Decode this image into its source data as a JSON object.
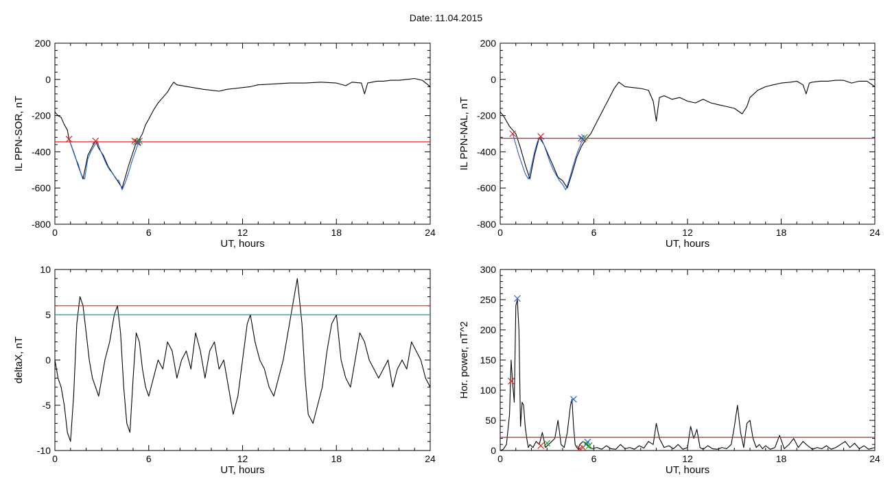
{
  "header": {
    "title": "Date:  11.04.2015"
  },
  "chart_data": [
    {
      "type": "line",
      "xlabel": "UT, hours",
      "ylabel": "IL PPN-SOR, nT",
      "xlim": [
        0,
        24
      ],
      "ylim": [
        -800,
        200
      ],
      "xticks": [
        0,
        6,
        12,
        18,
        24
      ],
      "yticks": [
        -800,
        -600,
        -400,
        -200,
        0,
        200
      ],
      "threshold": [
        {
          "value": -345,
          "color": "#e0201f"
        }
      ],
      "series": [
        {
          "color": "#000000",
          "x": [
            0,
            0.2,
            0.4,
            0.6,
            0.8,
            0.9,
            1.2,
            1.5,
            1.8,
            2.1,
            2.4,
            2.6,
            2.8,
            3.1,
            3.4,
            3.7,
            4,
            4.3,
            4.5,
            4.7,
            5,
            5.2,
            5.4,
            5.6,
            5.8,
            6,
            6.3,
            6.6,
            6.9,
            7.2,
            7.4,
            7.6,
            7.8,
            8.5,
            9.5,
            10.5,
            11,
            11.5,
            12,
            12.5,
            13,
            14,
            15,
            16,
            17,
            18,
            18.6,
            19,
            19.6,
            19.8,
            20,
            20.6,
            21,
            21.5,
            22,
            22.5,
            23,
            23.5,
            24
          ],
          "y": [
            -180,
            -200,
            -210,
            -250,
            -280,
            -330,
            -400,
            -480,
            -550,
            -420,
            -370,
            -340,
            -380,
            -420,
            -480,
            -520,
            -560,
            -600,
            -540,
            -480,
            -400,
            -350,
            -330,
            -300,
            -250,
            -220,
            -170,
            -130,
            -100,
            -70,
            -40,
            -15,
            -30,
            -40,
            -55,
            -65,
            -55,
            -50,
            -45,
            -40,
            -30,
            -25,
            -20,
            -20,
            -15,
            -20,
            -35,
            -15,
            -20,
            -80,
            -20,
            -10,
            -10,
            -5,
            -5,
            0,
            5,
            -5,
            -40
          ]
        },
        {
          "color": "#1f5fd6",
          "x": [
            0.9,
            1.1,
            1.3,
            1.5,
            1.7,
            1.9,
            2.1,
            2.3,
            2.5,
            2.7,
            2.9,
            3.1,
            3.3,
            3.5,
            3.7,
            3.9,
            4.1,
            4.3,
            4.5,
            4.7,
            4.9,
            5.1,
            5.3,
            5.5
          ],
          "y": [
            -330,
            -380,
            -430,
            -470,
            -530,
            -550,
            -440,
            -400,
            -370,
            -340,
            -390,
            -430,
            -470,
            -500,
            -520,
            -550,
            -560,
            -610,
            -570,
            -520,
            -460,
            -410,
            -360,
            -340
          ]
        }
      ],
      "markers": [
        {
          "x": 0.9,
          "y": -330,
          "color": "#e0201f"
        },
        {
          "x": 2.6,
          "y": -340,
          "color": "#e0201f"
        },
        {
          "x": 5.1,
          "y": -340,
          "color": "#e0201f"
        },
        {
          "x": 5.3,
          "y": -345,
          "color": "#e0201f"
        },
        {
          "x": 5.2,
          "y": -345,
          "color": "#2ca02c"
        },
        {
          "x": 5.4,
          "y": -340,
          "color": "#2ca02c"
        },
        {
          "x": 5.3,
          "y": -350,
          "color": "#1f5fd6"
        }
      ]
    },
    {
      "type": "line",
      "xlabel": "UT, hours",
      "ylabel": "IL PPN-NAL, nT",
      "xlim": [
        0,
        24
      ],
      "ylim": [
        -800,
        200
      ],
      "xticks": [
        0,
        6,
        12,
        18,
        24
      ],
      "yticks": [
        -800,
        -600,
        -400,
        -200,
        0,
        200
      ],
      "threshold": [
        {
          "value": -325,
          "color": "#e0201f"
        }
      ],
      "series": [
        {
          "color": "#000000",
          "x": [
            0,
            0.2,
            0.4,
            0.6,
            0.8,
            1,
            1.3,
            1.6,
            1.9,
            2.2,
            2.5,
            2.8,
            3.1,
            3.4,
            3.7,
            4,
            4.3,
            4.6,
            4.9,
            5.2,
            5.5,
            5.8,
            6.1,
            6.4,
            6.7,
            7,
            7.3,
            7.6,
            8,
            8.5,
            9,
            9.5,
            9.8,
            10,
            10.2,
            10.5,
            11,
            11.5,
            12,
            12.5,
            13,
            13.5,
            14,
            14.5,
            15,
            15.5,
            15.8,
            16,
            16.5,
            17,
            17.5,
            18,
            18.6,
            19,
            19.4,
            19.6,
            19.8,
            20,
            20.5,
            21,
            21.5,
            22,
            22.5,
            23,
            23.5,
            24
          ],
          "y": [
            -180,
            -200,
            -230,
            -260,
            -280,
            -300,
            -380,
            -470,
            -550,
            -420,
            -320,
            -360,
            -420,
            -480,
            -540,
            -560,
            -600,
            -520,
            -430,
            -370,
            -330,
            -300,
            -250,
            -200,
            -150,
            -100,
            -50,
            -15,
            -40,
            -45,
            -50,
            -60,
            -120,
            -230,
            -100,
            -90,
            -110,
            -100,
            -120,
            -130,
            -110,
            -130,
            -140,
            -150,
            -160,
            -190,
            -150,
            -100,
            -60,
            -40,
            -30,
            -20,
            -15,
            -10,
            -30,
            -80,
            -20,
            -15,
            -10,
            -10,
            -5,
            -5,
            -20,
            -10,
            -10,
            -40
          ]
        },
        {
          "color": "#1f5fd6",
          "x": [
            0.8,
            1,
            1.2,
            1.4,
            1.6,
            1.8,
            2,
            2.2,
            2.4,
            2.6,
            2.8,
            3,
            3.2,
            3.4,
            3.6,
            3.8,
            4,
            4.2,
            4.4,
            4.6,
            4.8,
            5,
            5.2,
            5.4
          ],
          "y": [
            -300,
            -360,
            -420,
            -470,
            -520,
            -550,
            -480,
            -400,
            -340,
            -320,
            -360,
            -410,
            -460,
            -500,
            -530,
            -560,
            -580,
            -610,
            -560,
            -500,
            -440,
            -390,
            -350,
            -330
          ]
        }
      ],
      "markers": [
        {
          "x": 0.8,
          "y": -300,
          "color": "#e0201f"
        },
        {
          "x": 2.6,
          "y": -315,
          "color": "#e0201f"
        },
        {
          "x": 5.3,
          "y": -330,
          "color": "#e0201f"
        },
        {
          "x": 5.4,
          "y": -320,
          "color": "#2ca02c"
        },
        {
          "x": 5.2,
          "y": -325,
          "color": "#1f5fd6"
        }
      ]
    },
    {
      "type": "line",
      "xlabel": "UT, hours",
      "ylabel": "deltaX, nT",
      "xlim": [
        0,
        24
      ],
      "ylim": [
        -10,
        10
      ],
      "xticks": [
        0,
        6,
        12,
        18,
        24
      ],
      "yticks": [
        -10,
        -5,
        0,
        5,
        10
      ],
      "threshold": [
        {
          "value": 6,
          "color": "#e0201f"
        },
        {
          "value": 5,
          "color": "#1f8f9a"
        }
      ],
      "series": [
        {
          "color": "#000000",
          "x": [
            0,
            0.2,
            0.4,
            0.6,
            0.8,
            1,
            1.2,
            1.4,
            1.6,
            1.8,
            2,
            2.2,
            2.4,
            2.6,
            2.8,
            3,
            3.2,
            3.5,
            3.8,
            4,
            4.2,
            4.4,
            4.6,
            4.8,
            5,
            5.2,
            5.4,
            5.6,
            5.8,
            6,
            6.3,
            6.6,
            6.9,
            7.2,
            7.5,
            7.8,
            8.1,
            8.4,
            8.7,
            9,
            9.3,
            9.6,
            9.9,
            10.2,
            10.5,
            10.8,
            11.1,
            11.4,
            11.7,
            12,
            12.3,
            12.5,
            12.8,
            13.1,
            13.4,
            13.7,
            14,
            14.3,
            14.6,
            14.9,
            15.2,
            15.5,
            15.8,
            16,
            16.2,
            16.5,
            16.8,
            17.1,
            17.4,
            17.7,
            18,
            18.3,
            18.6,
            18.9,
            19.2,
            19.5,
            19.8,
            20.1,
            20.4,
            20.7,
            21,
            21.3,
            21.6,
            21.9,
            22.2,
            22.5,
            22.8,
            23.1,
            23.4,
            23.7,
            24
          ],
          "y": [
            0,
            -2,
            -3,
            -5,
            -8,
            -9,
            -4,
            4,
            7,
            6,
            3,
            0,
            -2,
            -3,
            -4,
            -2,
            0,
            2,
            5,
            6,
            3,
            -3,
            -7,
            -8,
            -2,
            3,
            2,
            -1,
            -3,
            -4,
            -2,
            0,
            -1,
            2,
            1,
            -2,
            0,
            1,
            -1,
            3,
            1,
            -2,
            1,
            2,
            -1,
            0,
            -3,
            -6,
            -4,
            0,
            4,
            5,
            2,
            0,
            -1,
            -3,
            -4,
            -2,
            0,
            3,
            6,
            9,
            4,
            -2,
            -6,
            -7,
            -5,
            -3,
            1,
            4,
            5,
            0,
            -2,
            -3,
            0,
            3,
            2,
            0,
            -1,
            -2,
            -1,
            0,
            -3,
            -1,
            0,
            -1,
            2,
            1,
            0,
            -2,
            -3
          ]
        }
      ],
      "markers": []
    },
    {
      "type": "line",
      "xlabel": "UT, hours",
      "ylabel": "Hor. power, nT^2",
      "xlim": [
        0,
        24
      ],
      "ylim": [
        0,
        300
      ],
      "xticks": [
        0,
        6,
        12,
        18,
        24
      ],
      "yticks": [
        0,
        50,
        100,
        150,
        200,
        250,
        300
      ],
      "threshold": [
        {
          "value": 22,
          "color": "#e0201f"
        }
      ],
      "series": [
        {
          "color": "#000000",
          "x": [
            0,
            0.2,
            0.4,
            0.6,
            0.7,
            0.8,
            0.9,
            1,
            1.1,
            1.2,
            1.3,
            1.4,
            1.5,
            1.6,
            1.7,
            1.8,
            1.9,
            2.1,
            2.3,
            2.5,
            2.7,
            2.9,
            3.1,
            3.3,
            3.5,
            3.7,
            3.9,
            4.1,
            4.3,
            4.5,
            4.6,
            4.7,
            4.8,
            4.9,
            5,
            5.1,
            5.3,
            5.5,
            5.7,
            5.9,
            6.2,
            6.5,
            6.8,
            7.1,
            7.4,
            7.7,
            8,
            8.3,
            8.6,
            8.9,
            9.2,
            9.5,
            9.8,
            10,
            10.2,
            10.5,
            10.8,
            11.1,
            11.4,
            11.7,
            12,
            12.2,
            12.4,
            12.6,
            12.8,
            13,
            13.3,
            13.6,
            13.9,
            14.2,
            14.5,
            14.8,
            15,
            15.2,
            15.4,
            15.6,
            15.8,
            16,
            16.2,
            16.4,
            16.6,
            16.8,
            17,
            17.3,
            17.6,
            17.9,
            18.2,
            18.5,
            18.8,
            19.1,
            19.4,
            19.7,
            20,
            20.3,
            20.6,
            20.9,
            21.2,
            21.5,
            21.8,
            22.1,
            22.4,
            22.7,
            23,
            23.3,
            23.6,
            24
          ],
          "y": [
            0,
            2,
            10,
            60,
            150,
            110,
            80,
            240,
            250,
            200,
            40,
            80,
            75,
            40,
            20,
            5,
            10,
            5,
            15,
            10,
            30,
            5,
            10,
            15,
            20,
            50,
            10,
            5,
            30,
            75,
            85,
            40,
            10,
            5,
            3,
            10,
            15,
            12,
            5,
            3,
            5,
            2,
            8,
            3,
            2,
            10,
            3,
            5,
            2,
            8,
            4,
            15,
            10,
            45,
            20,
            5,
            8,
            3,
            10,
            2,
            5,
            40,
            20,
            35,
            5,
            2,
            8,
            3,
            2,
            5,
            3,
            10,
            40,
            75,
            30,
            5,
            45,
            50,
            20,
            5,
            10,
            3,
            8,
            2,
            5,
            25,
            3,
            10,
            20,
            5,
            15,
            8,
            2,
            5,
            3,
            8,
            2,
            5,
            10,
            15,
            5,
            12,
            3,
            8,
            2,
            5
          ]
        }
      ],
      "markers": [
        {
          "x": 0.7,
          "y": 115,
          "color": "#e0201f"
        },
        {
          "x": 1.1,
          "y": 252,
          "color": "#1f5fd6"
        },
        {
          "x": 4.7,
          "y": 85,
          "color": "#1f5fd6"
        },
        {
          "x": 2.6,
          "y": 8,
          "color": "#e0201f"
        },
        {
          "x": 3.0,
          "y": 12,
          "color": "#2ca02c"
        },
        {
          "x": 5.1,
          "y": 3,
          "color": "#e0201f"
        },
        {
          "x": 5.3,
          "y": 5,
          "color": "#e0201f"
        },
        {
          "x": 5.5,
          "y": 10,
          "color": "#2ca02c"
        },
        {
          "x": 5.6,
          "y": 14,
          "color": "#1f5fd6"
        },
        {
          "x": 5.7,
          "y": 8,
          "color": "#2ca02c"
        }
      ]
    }
  ]
}
